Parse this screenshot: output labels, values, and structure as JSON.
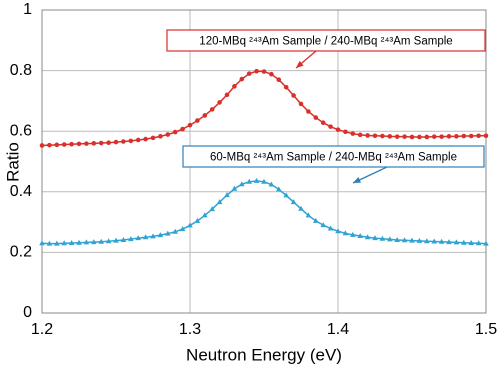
{
  "chart_data": {
    "type": "line",
    "xlabel": "Neutron Energy (eV)",
    "ylabel": "Ratio",
    "x": [
      1.2,
      1.205,
      1.21,
      1.215,
      1.22,
      1.225,
      1.23,
      1.235,
      1.24,
      1.245,
      1.25,
      1.255,
      1.26,
      1.265,
      1.27,
      1.275,
      1.28,
      1.285,
      1.29,
      1.295,
      1.3,
      1.305,
      1.31,
      1.315,
      1.32,
      1.325,
      1.33,
      1.335,
      1.34,
      1.345,
      1.35,
      1.355,
      1.36,
      1.365,
      1.37,
      1.375,
      1.38,
      1.385,
      1.39,
      1.395,
      1.4,
      1.405,
      1.41,
      1.415,
      1.42,
      1.425,
      1.43,
      1.435,
      1.44,
      1.445,
      1.45,
      1.455,
      1.46,
      1.465,
      1.47,
      1.475,
      1.48,
      1.485,
      1.49,
      1.495,
      1.5
    ],
    "series": [
      {
        "color": "#d9302c",
        "marker": "circle",
        "values": [
          0.553,
          0.554,
          0.555,
          0.556,
          0.557,
          0.558,
          0.559,
          0.56,
          0.561,
          0.562,
          0.564,
          0.566,
          0.568,
          0.571,
          0.574,
          0.578,
          0.583,
          0.589,
          0.597,
          0.607,
          0.62,
          0.635,
          0.652,
          0.672,
          0.695,
          0.72,
          0.748,
          0.772,
          0.79,
          0.798,
          0.797,
          0.788,
          0.77,
          0.745,
          0.718,
          0.69,
          0.665,
          0.645,
          0.628,
          0.615,
          0.605,
          0.598,
          0.592,
          0.588,
          0.586,
          0.585,
          0.584,
          0.583,
          0.582,
          0.582,
          0.581,
          0.581,
          0.581,
          0.582,
          0.582,
          0.583,
          0.583,
          0.584,
          0.584,
          0.585,
          0.585
        ]
      },
      {
        "color": "#2fa3d4",
        "marker": "triangle",
        "values": [
          0.23,
          0.229,
          0.229,
          0.23,
          0.231,
          0.232,
          0.233,
          0.234,
          0.235,
          0.237,
          0.239,
          0.241,
          0.244,
          0.247,
          0.25,
          0.253,
          0.257,
          0.262,
          0.268,
          0.277,
          0.289,
          0.304,
          0.322,
          0.343,
          0.366,
          0.389,
          0.41,
          0.425,
          0.433,
          0.436,
          0.433,
          0.424,
          0.408,
          0.388,
          0.366,
          0.344,
          0.322,
          0.304,
          0.29,
          0.279,
          0.27,
          0.263,
          0.258,
          0.254,
          0.25,
          0.247,
          0.245,
          0.243,
          0.241,
          0.24,
          0.239,
          0.238,
          0.237,
          0.236,
          0.235,
          0.234,
          0.233,
          0.232,
          0.231,
          0.23,
          0.229
        ]
      }
    ],
    "annotations": [
      {
        "text": "120-MBq ²⁴³Am Sample / 240-MBq ²⁴³Am Sample",
        "color": "#d9302c"
      },
      {
        "text": "60-MBq ²⁴³Am Sample / 240-MBq ²⁴³Am Sample",
        "color": "#2f7fb8"
      }
    ],
    "xlim": [
      1.2,
      1.5
    ],
    "xticks": [
      1.2,
      1.3,
      1.4,
      1.5
    ],
    "ylim": [
      0,
      1
    ],
    "yticks": [
      0,
      0.2,
      0.4,
      0.6,
      0.8,
      1
    ],
    "grid": true
  }
}
